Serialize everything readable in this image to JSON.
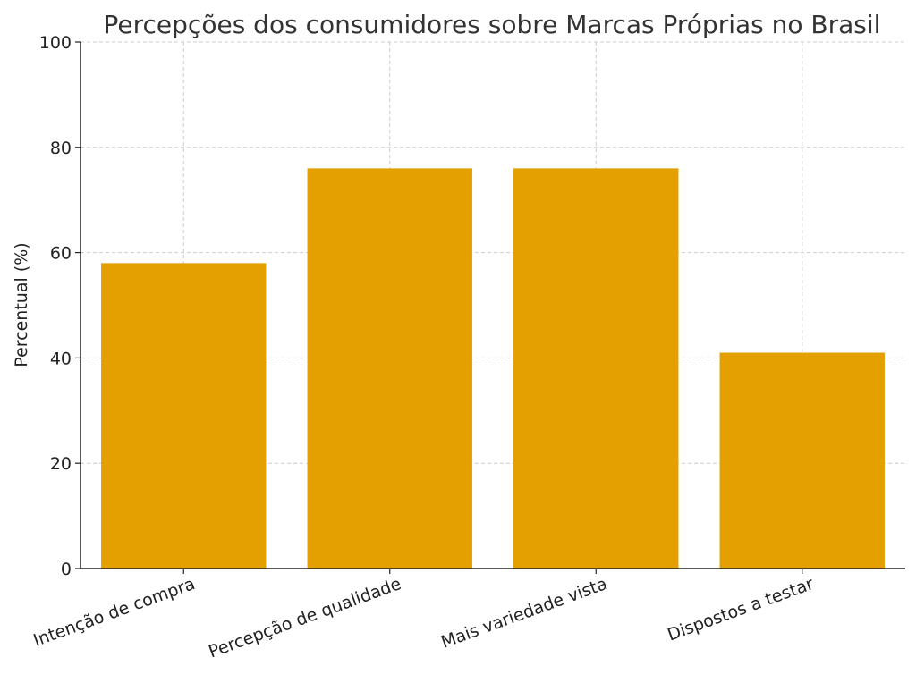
{
  "chart_data": {
    "type": "bar",
    "title": "Percepções dos consumidores sobre Marcas Próprias no Brasil",
    "xlabel": "",
    "ylabel": "Percentual (%)",
    "categories": [
      "Intenção de compra",
      "Percepção de qualidade",
      "Mais variedade vista",
      "Dispostos a testar"
    ],
    "values": [
      58,
      76,
      76,
      41
    ],
    "ylim": [
      0,
      100
    ],
    "yticks": [
      0,
      20,
      40,
      60,
      80,
      100
    ],
    "bar_color": "#e49f00",
    "grid": true,
    "legend": "none"
  }
}
